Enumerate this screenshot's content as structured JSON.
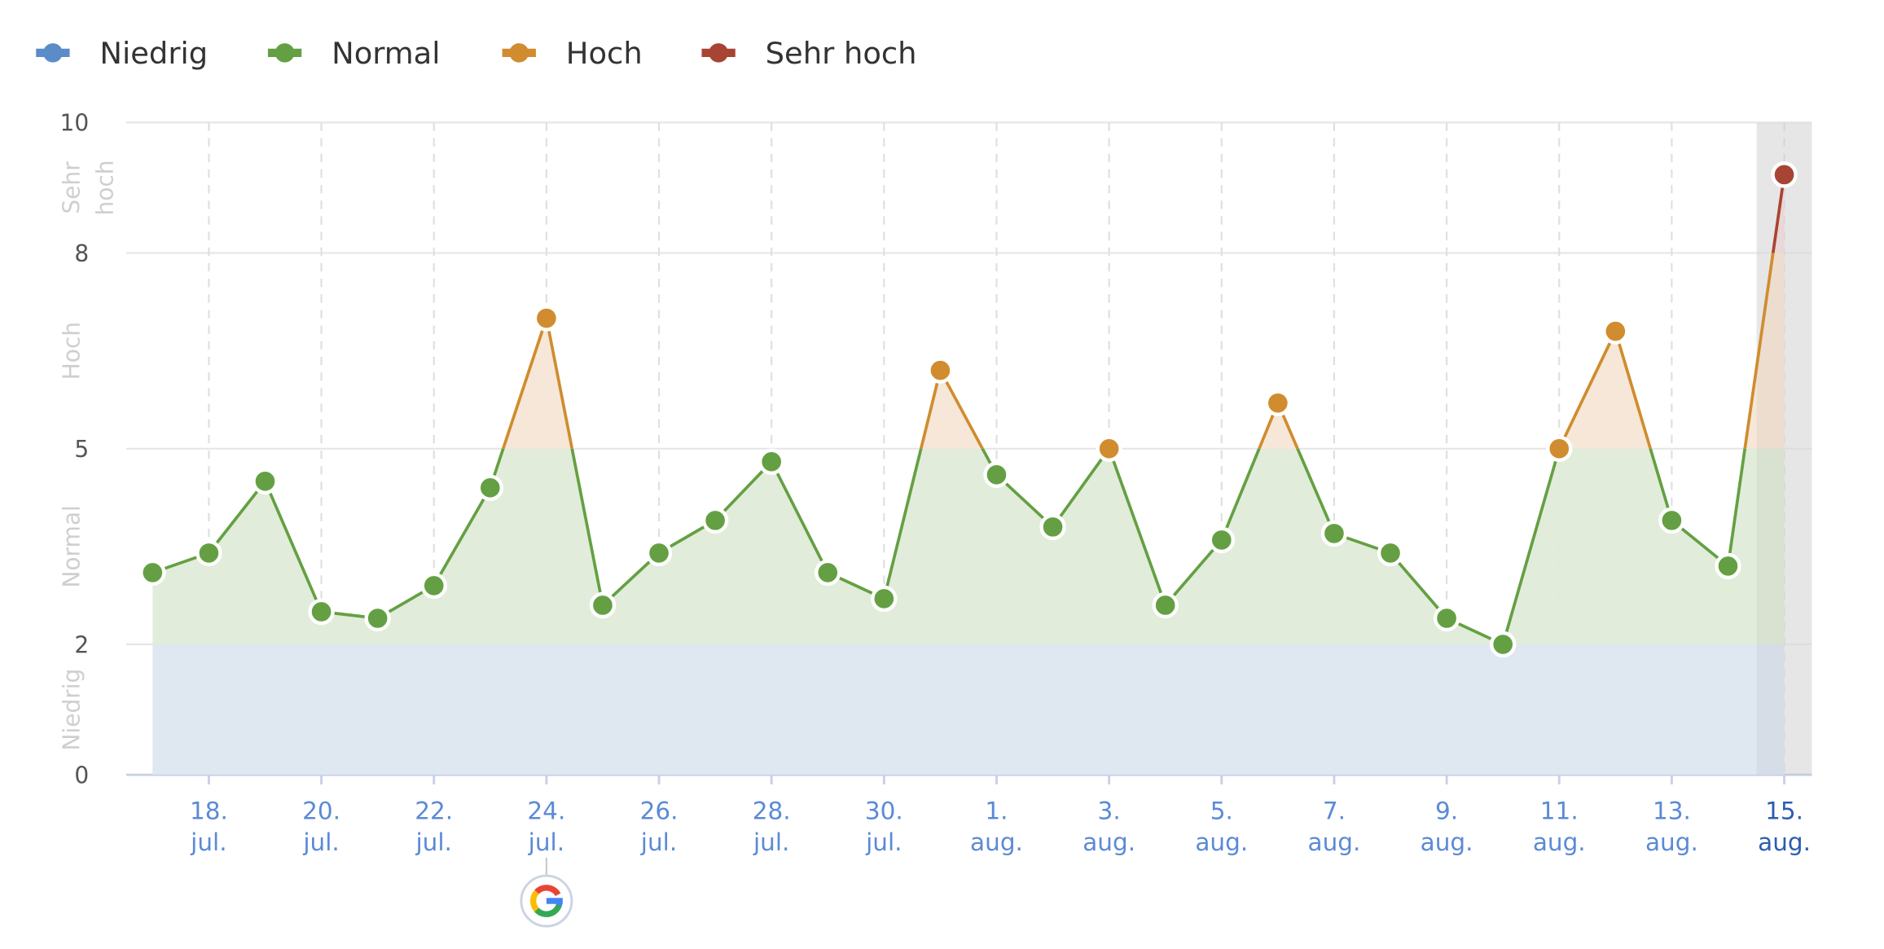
{
  "chart_data": {
    "type": "line",
    "title": "",
    "xlabel": "",
    "ylabel": "",
    "ylim": [
      0,
      10
    ],
    "y_ticks": [
      "0",
      "2",
      "5",
      "8",
      "10"
    ],
    "grid": true,
    "legend_placement": "top-left",
    "legend": [
      {
        "name": "Niedrig",
        "color": "#5b8cc8"
      },
      {
        "name": "Normal",
        "color": "#64a043"
      },
      {
        "name": "Hoch",
        "color": "#d08c2e"
      },
      {
        "name": "Sehr hoch",
        "color": "#a84434"
      }
    ],
    "bands": [
      {
        "label": "Niedrig",
        "from": 0,
        "to": 2,
        "color": "#5b8cc8",
        "fill": "#dde6f0"
      },
      {
        "label": "Normal",
        "from": 2,
        "to": 5,
        "color": "#64a043",
        "fill": "#e0ebd8"
      },
      {
        "label": "Hoch",
        "from": 5,
        "to": 8,
        "color": "#d08c2e",
        "fill": "#f5e6d6"
      },
      {
        "label": "Sehr hoch",
        "from": 8,
        "to": 10,
        "color": "#a84434",
        "fill": "#f3dede"
      }
    ],
    "x": [
      "17. jul.",
      "18. jul.",
      "19. jul.",
      "20. jul.",
      "21. jul.",
      "22. jul.",
      "23. jul.",
      "24. jul.",
      "25. jul.",
      "26. jul.",
      "27. jul.",
      "28. jul.",
      "29. jul.",
      "30. jul.",
      "31. jul.",
      "1. aug.",
      "2. aug.",
      "3. aug.",
      "4. aug.",
      "5. aug.",
      "6. aug.",
      "7. aug.",
      "8. aug.",
      "9. aug.",
      "10. aug.",
      "11. aug.",
      "12. aug.",
      "13. aug.",
      "14. aug.",
      "15. aug."
    ],
    "values": [
      3.1,
      3.4,
      4.5,
      2.5,
      2.4,
      2.9,
      4.4,
      7.0,
      2.6,
      3.4,
      3.9,
      4.8,
      3.1,
      2.7,
      6.2,
      4.6,
      3.8,
      5.0,
      2.6,
      3.6,
      5.7,
      3.7,
      3.4,
      2.4,
      2.0,
      5.0,
      6.8,
      3.9,
      3.2,
      9.2
    ],
    "x_tick_labels": [
      [
        "18.",
        "jul."
      ],
      [
        "20.",
        "jul."
      ],
      [
        "22.",
        "jul."
      ],
      [
        "24.",
        "jul."
      ],
      [
        "26.",
        "jul."
      ],
      [
        "28.",
        "jul."
      ],
      [
        "30.",
        "jul."
      ],
      [
        "1.",
        "aug."
      ],
      [
        "3.",
        "aug."
      ],
      [
        "5.",
        "aug."
      ],
      [
        "7.",
        "aug."
      ],
      [
        "9.",
        "aug."
      ],
      [
        "11.",
        "aug."
      ],
      [
        "13.",
        "aug."
      ],
      [
        "15.",
        "aug."
      ]
    ],
    "highlighted_x": "15. aug.",
    "annotations": [
      {
        "x": "24. jul.",
        "icon": "google-icon"
      }
    ]
  }
}
